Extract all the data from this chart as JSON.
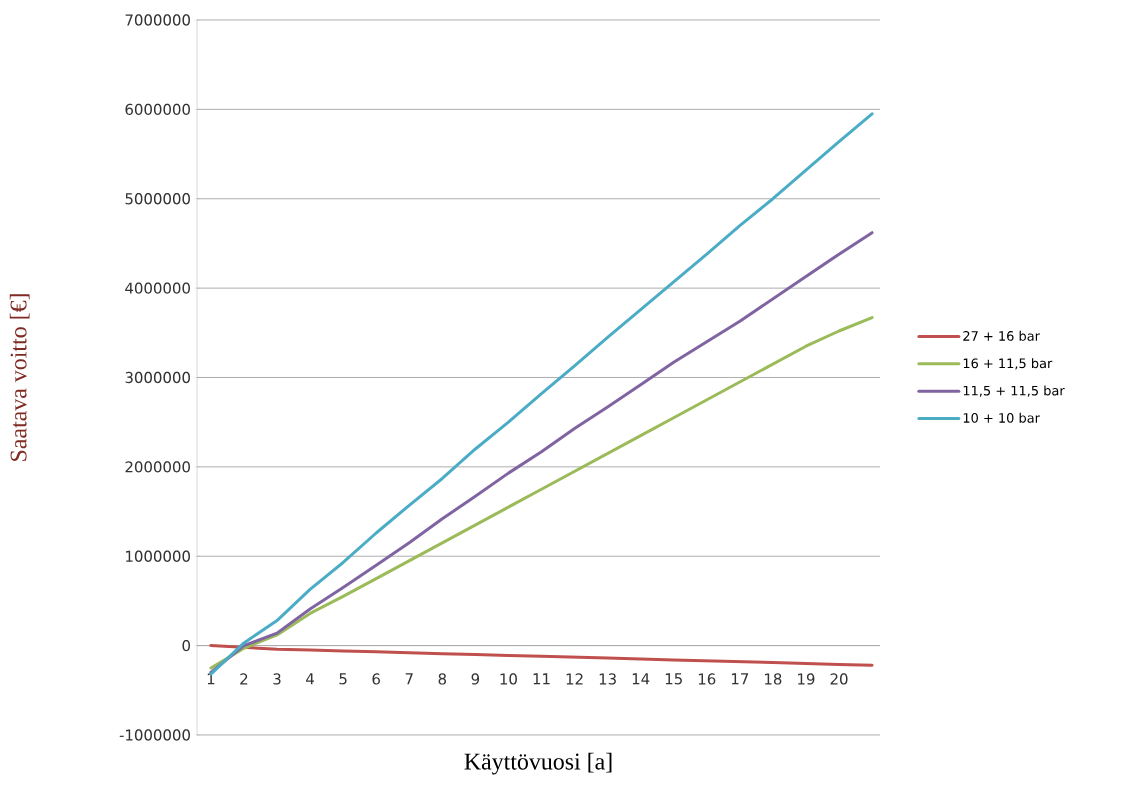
{
  "chart_data": {
    "type": "line",
    "xlabel": "Käyttövuosi [a]",
    "ylabel": "Saatava voitto [€]",
    "categories": [
      "1",
      "2",
      "3",
      "4",
      "5",
      "6",
      "7",
      "8",
      "9",
      "10",
      "11",
      "12",
      "13",
      "14",
      "15",
      "16",
      "17",
      "18",
      "19",
      "20",
      null
    ],
    "series": [
      {
        "name": "27 + 16 bar",
        "color": "#c0504d",
        "values": [
          0,
          -20000,
          -40000,
          -50000,
          -60000,
          -70000,
          -80000,
          -90000,
          -100000,
          -110000,
          -120000,
          -130000,
          -140000,
          -150000,
          -160000,
          -170000,
          -180000,
          -190000,
          -200000,
          -210000,
          -220000
        ]
      },
      {
        "name": "16 + 11,5 bar",
        "color": "#9bbb59",
        "values": [
          -250000,
          -30000,
          120000,
          360000,
          550000,
          750000,
          950000,
          1150000,
          1350000,
          1550000,
          1750000,
          1950000,
          2150000,
          2350000,
          2550000,
          2750000,
          2950000,
          3150000,
          3350000,
          3520000,
          3670000
        ]
      },
      {
        "name": "11,5 + 11,5 bar",
        "color": "#8064a2",
        "values": [
          -300000,
          0,
          140000,
          410000,
          650000,
          900000,
          1150000,
          1420000,
          1670000,
          1930000,
          2170000,
          2430000,
          2670000,
          2920000,
          3170000,
          3400000,
          3630000,
          3880000,
          4130000,
          4380000,
          4620000
        ]
      },
      {
        "name": "10 + 10 bar",
        "color": "#4bacc6",
        "values": [
          -320000,
          30000,
          280000,
          630000,
          930000,
          1260000,
          1570000,
          1870000,
          2200000,
          2500000,
          2820000,
          3130000,
          3450000,
          3760000,
          4070000,
          4380000,
          4700000,
          5000000,
          5320000,
          5640000,
          5950000
        ]
      }
    ],
    "ylim": [
      -1000000,
      7000000
    ],
    "yticks": [
      -1000000,
      0,
      1000000,
      2000000,
      3000000,
      4000000,
      5000000,
      6000000,
      7000000
    ],
    "grid": "y",
    "legend": "right",
    "marker": "none",
    "line_style": "solid"
  }
}
